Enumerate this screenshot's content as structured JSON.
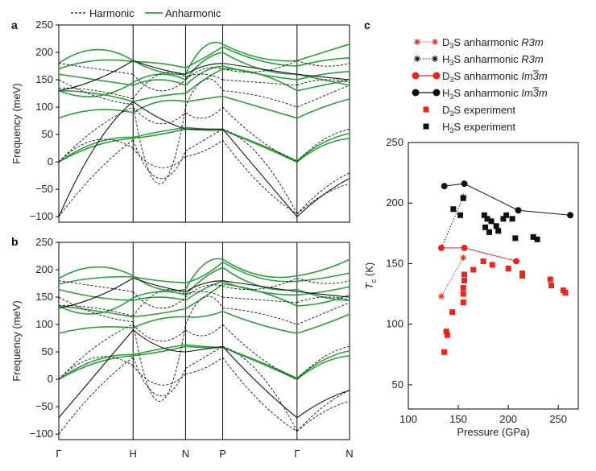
{
  "chart_data": [
    {
      "panel": "a",
      "type": "line",
      "ylabel": "Frequency (meV)",
      "ylim": [
        -110,
        250
      ],
      "yticks": [
        -100,
        -50,
        0,
        50,
        100,
        150,
        200,
        250
      ],
      "legend": [
        {
          "name": "Harmonic",
          "style": "dashed",
          "color": "#000000"
        },
        {
          "name": "Anharmonic",
          "style": "solid",
          "color": "#2e9e3e"
        }
      ],
      "kpoints": [
        "Γ",
        "H",
        "N",
        "P",
        "Γ",
        "N"
      ],
      "kpos": [
        0,
        1,
        1.707,
        2.207,
        3.207,
        3.914
      ]
    },
    {
      "panel": "b",
      "type": "line",
      "ylabel": "Frequency (meV)",
      "ylim": [
        -110,
        250
      ],
      "yticks": [
        -100,
        -50,
        0,
        50,
        100,
        150,
        200,
        250
      ],
      "kpoints": [
        "Γ",
        "H",
        "N",
        "P",
        "Γ",
        "N"
      ],
      "kpos": [
        0,
        1,
        1.707,
        2.207,
        3.207,
        3.914
      ]
    },
    {
      "panel": "c",
      "type": "scatter",
      "xlabel": "Pressure (GPa)",
      "ylabel_main": "T",
      "ylabel_sub": "c",
      "ylabel_unit": " (K)",
      "xlim": [
        100,
        270
      ],
      "ylim": [
        30,
        250
      ],
      "xticks": [
        100,
        150,
        200,
        250
      ],
      "yticks": [
        50,
        100,
        150,
        200,
        250
      ],
      "legend": [
        {
          "prefix": "D",
          "sub": "3",
          "rest": "S anharmonic ",
          "phase": "R3m",
          "bar": false,
          "color": "#e8251f",
          "marker": "star-dotted"
        },
        {
          "prefix": "H",
          "sub": "3",
          "rest": "S anharmonic ",
          "phase": "R3m",
          "bar": false,
          "color": "#111111",
          "marker": "star-dotted"
        },
        {
          "prefix": "D",
          "sub": "3",
          "rest": "S anharmonic ",
          "phase": "Im3m",
          "bar": true,
          "color": "#e8251f",
          "marker": "circle-line"
        },
        {
          "prefix": "H",
          "sub": "3",
          "rest": "S anharmonic ",
          "phase": "Im3m",
          "bar": true,
          "color": "#111111",
          "marker": "circle-line"
        },
        {
          "prefix": "D",
          "sub": "3",
          "rest": "S experiment",
          "phase": "",
          "bar": false,
          "color": "#e8251f",
          "marker": "square"
        },
        {
          "prefix": "H",
          "sub": "3",
          "rest": "S experiment",
          "phase": "",
          "bar": false,
          "color": "#111111",
          "marker": "square"
        }
      ],
      "series": [
        {
          "name": "D3S anharmonic R3m",
          "color": "#e8251f",
          "x": [
            133,
            155
          ],
          "y": [
            123,
            155
          ]
        },
        {
          "name": "H3S anharmonic R3m",
          "color": "#111111",
          "x": [
            133,
            155
          ],
          "y": [
            163,
            205
          ]
        },
        {
          "name": "D3S anharmonic Im3m",
          "color": "#e8251f",
          "x": [
            133,
            156,
            208
          ],
          "y": [
            163,
            163,
            152
          ]
        },
        {
          "name": "H3S anharmonic Im3m",
          "color": "#111111",
          "x": [
            136,
            156,
            210,
            262
          ],
          "y": [
            214,
            216,
            194,
            190
          ]
        },
        {
          "name": "D3S experiment",
          "color": "#e8251f",
          "x": [
            136,
            138,
            139,
            144,
            155,
            155,
            155,
            156,
            156,
            165,
            175,
            184,
            200,
            214,
            214,
            242,
            243,
            255,
            257
          ],
          "y": [
            77,
            94,
            91,
            110,
            118,
            125,
            130,
            136,
            141,
            145,
            152,
            149,
            146,
            142,
            140,
            137,
            132,
            128,
            126
          ]
        },
        {
          "name": "H3S experiment",
          "color": "#111111",
          "x": [
            145,
            152,
            155,
            176,
            177,
            179,
            181,
            183,
            188,
            190,
            195,
            198,
            204,
            207,
            225,
            229
          ],
          "y": [
            195,
            190,
            204,
            190,
            180,
            187,
            176,
            185,
            181,
            177,
            187,
            190,
            187,
            171,
            172,
            170
          ]
        }
      ]
    }
  ]
}
